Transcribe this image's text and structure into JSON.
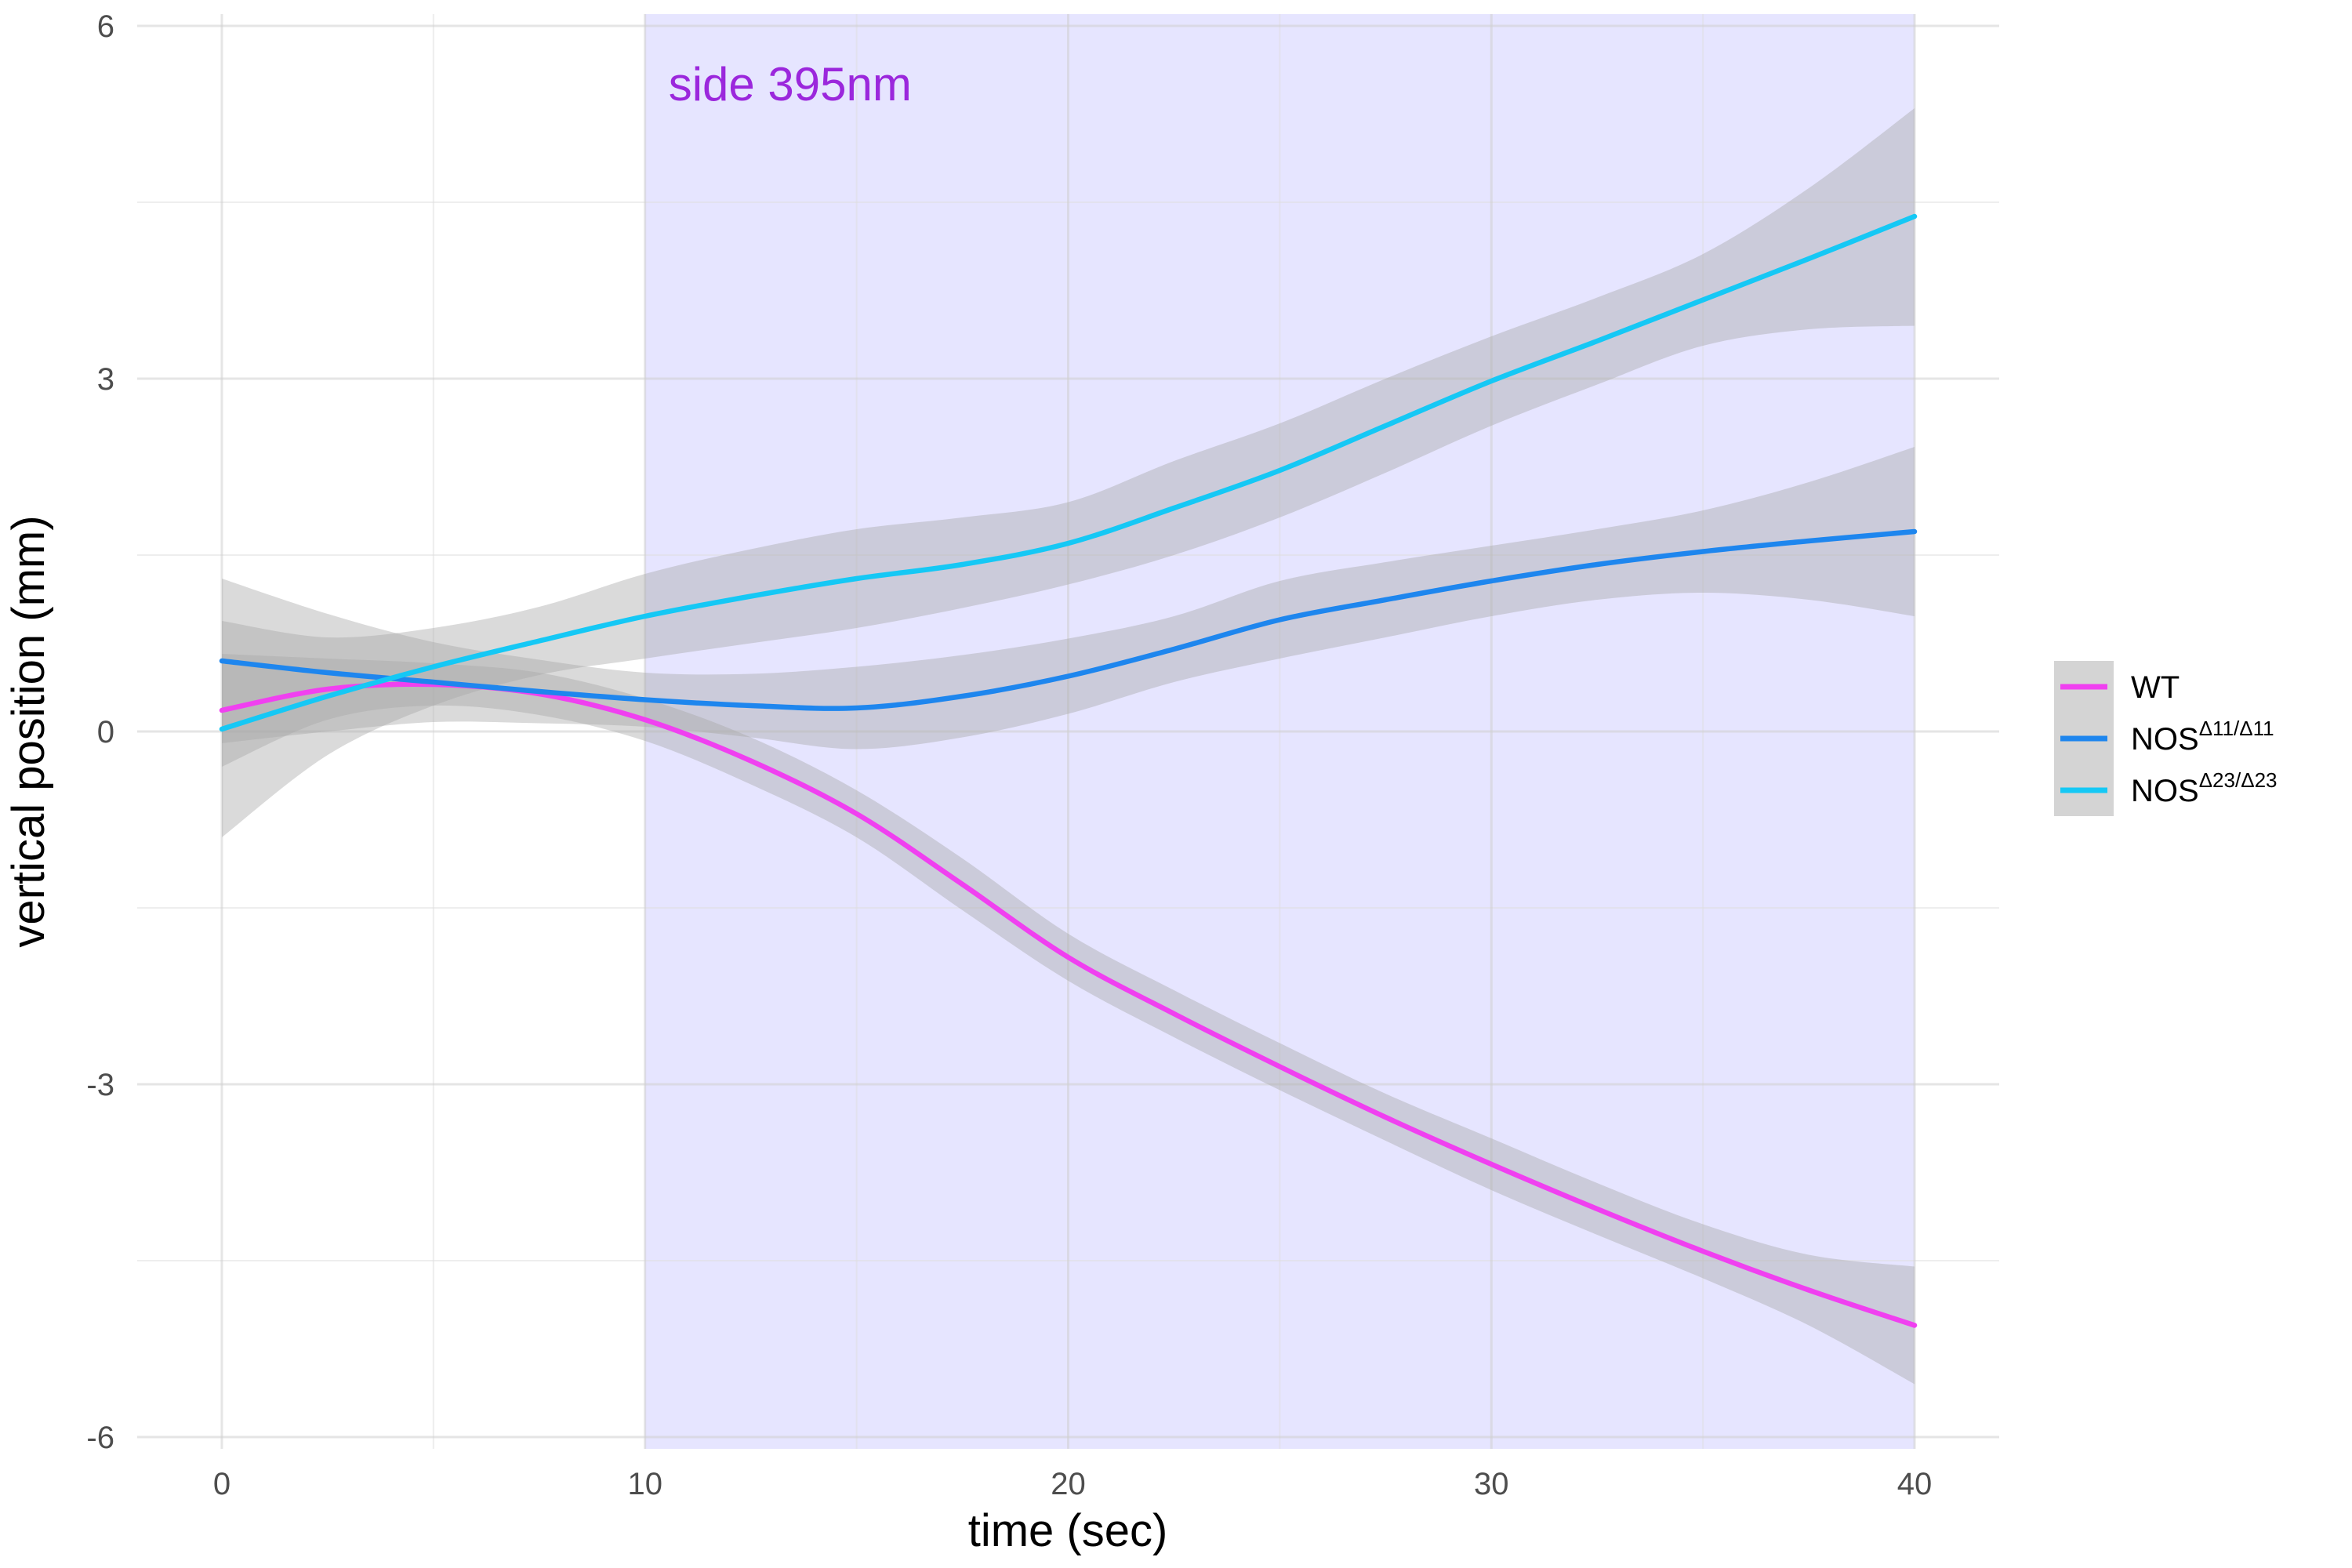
{
  "chart_data": {
    "type": "line",
    "xlabel": "time (sec)",
    "ylabel": "vertical position (mm)",
    "xlim": [
      -2,
      42
    ],
    "ylim": [
      -6.1,
      6.1
    ],
    "x_ticks": [
      0,
      10,
      20,
      30,
      40
    ],
    "x_tick_labels": [
      "0",
      "10",
      "20",
      "30",
      "40"
    ],
    "y_ticks": [
      -6,
      -3,
      0,
      3,
      6
    ],
    "y_tick_labels": [
      "-6",
      "-3",
      "0",
      "3",
      "6"
    ],
    "grid": true,
    "legend_position": "right",
    "highlight": {
      "label": "side 395nm",
      "x_start": 10,
      "x_end": 40,
      "color": "#e6e5ff",
      "label_color": "#9b27dc"
    },
    "band_color": "#a6a6a6",
    "x": [
      0,
      2.5,
      5,
      7.5,
      10,
      12.5,
      15,
      17.5,
      20,
      22.5,
      25,
      27.5,
      30,
      32.5,
      35,
      37.5,
      40
    ],
    "series": [
      {
        "name": "WT",
        "name_base": "WT",
        "name_sup": "",
        "color": "#f040f0",
        "y": [
          0.18,
          0.36,
          0.4,
          0.32,
          0.1,
          -0.25,
          -0.7,
          -1.3,
          -1.92,
          -2.4,
          -2.85,
          -3.28,
          -3.68,
          -4.06,
          -4.42,
          -4.75,
          -5.05
        ],
        "lower": [
          -0.3,
          0.1,
          0.22,
          0.14,
          -0.08,
          -0.45,
          -0.9,
          -1.52,
          -2.12,
          -2.6,
          -3.05,
          -3.48,
          -3.9,
          -4.28,
          -4.65,
          -5.05,
          -5.55
        ],
        "upper": [
          0.66,
          0.62,
          0.58,
          0.5,
          0.28,
          -0.05,
          -0.5,
          -1.08,
          -1.72,
          -2.2,
          -2.65,
          -3.08,
          -3.46,
          -3.84,
          -4.19,
          -4.45,
          -4.55
        ]
      },
      {
        "name": "NOSΔ11/Δ11",
        "name_base": "NOS",
        "name_sup": "Δ11/Δ11",
        "color": "#1e86ee",
        "y": [
          0.6,
          0.5,
          0.42,
          0.34,
          0.27,
          0.22,
          0.2,
          0.3,
          0.47,
          0.7,
          0.95,
          1.12,
          1.28,
          1.42,
          1.53,
          1.62,
          1.7
        ],
        "lower": [
          -0.1,
          0.0,
          0.08,
          0.07,
          0.04,
          -0.05,
          -0.15,
          -0.05,
          0.15,
          0.42,
          0.62,
          0.8,
          0.98,
          1.12,
          1.18,
          1.12,
          0.98
        ],
        "upper": [
          1.3,
          1.0,
          0.76,
          0.61,
          0.5,
          0.49,
          0.55,
          0.65,
          0.79,
          0.98,
          1.28,
          1.44,
          1.58,
          1.72,
          1.88,
          2.12,
          2.42
        ]
      },
      {
        "name": "NOSΔ23/Δ23",
        "name_base": "NOS",
        "name_sup": "Δ23/Δ23",
        "color": "#15c8f5",
        "y": [
          0.02,
          0.3,
          0.55,
          0.77,
          0.98,
          1.15,
          1.3,
          1.42,
          1.6,
          1.9,
          2.22,
          2.6,
          2.98,
          3.32,
          3.67,
          4.02,
          4.38
        ],
        "lower": [
          -0.9,
          -0.2,
          0.22,
          0.48,
          0.62,
          0.75,
          0.88,
          1.05,
          1.25,
          1.5,
          1.82,
          2.2,
          2.6,
          2.95,
          3.28,
          3.42,
          3.45
        ],
        "upper": [
          0.94,
          0.8,
          0.88,
          1.06,
          1.34,
          1.55,
          1.72,
          1.82,
          1.95,
          2.3,
          2.62,
          3.0,
          3.36,
          3.69,
          4.06,
          4.62,
          5.3
        ]
      }
    ]
  }
}
